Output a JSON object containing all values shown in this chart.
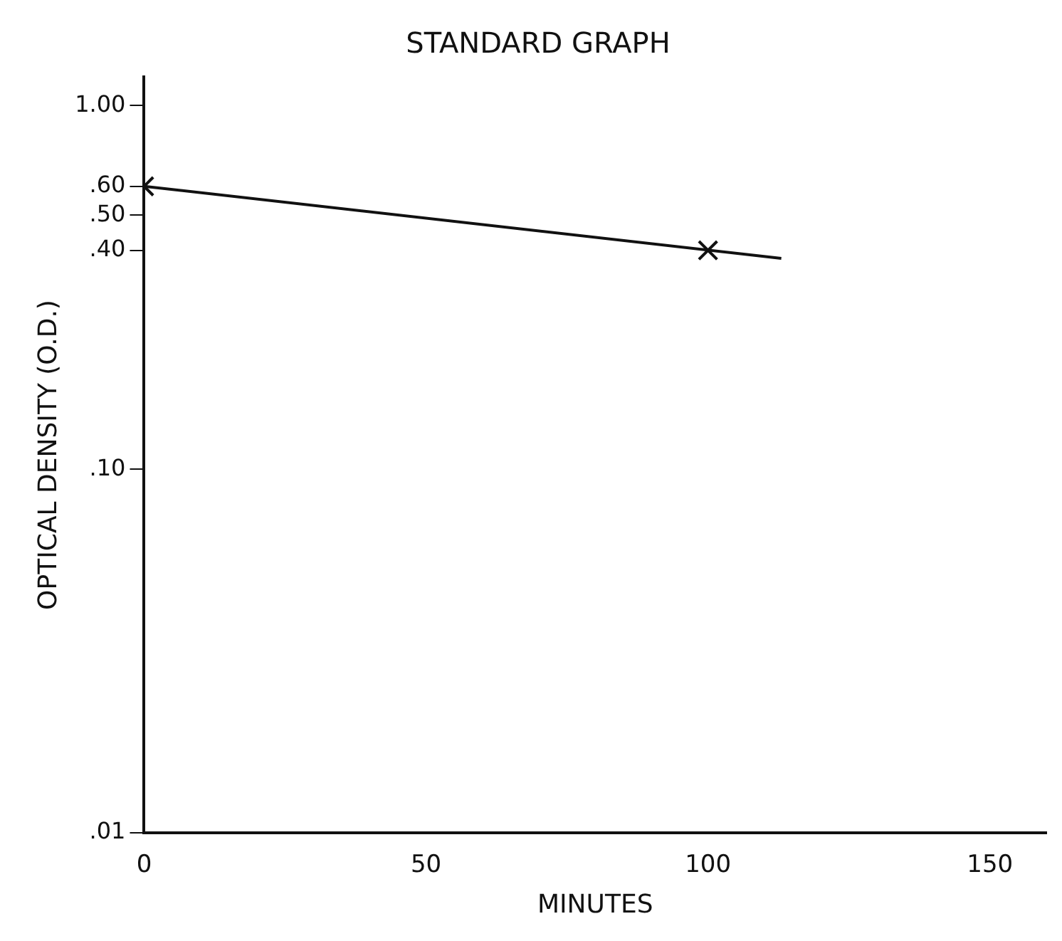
{
  "chart_data": {
    "type": "scatter",
    "title": "STANDARD GRAPH",
    "xlabel": "MINUTES",
    "ylabel": "OPTICAL DENSITY (O.D.)",
    "xlim": [
      0,
      160
    ],
    "xticks": [
      0,
      50,
      100,
      150
    ],
    "ylim": [
      0.01,
      1.2
    ],
    "yticks": [
      {
        "value": 0.01,
        "label": ".01"
      },
      {
        "value": 0.1,
        "label": ".10"
      },
      {
        "value": 0.4,
        "label": ".40"
      },
      {
        "value": 0.5,
        "label": ".50"
      },
      {
        "value": 0.6,
        "label": ".60"
      },
      {
        "value": 1,
        "label": "1.00"
      }
    ],
    "log": "y",
    "grid": false,
    "legend": false,
    "series": [
      {
        "type": "line",
        "color": "#111111",
        "x": [
          0,
          113
        ],
        "values": [
          0.6,
          0.38
        ],
        "marker": "none",
        "line_style": "solid"
      },
      {
        "color": "#111111",
        "x": [
          0,
          100
        ],
        "values": [
          0.6,
          0.4
        ],
        "marker": "cross"
      }
    ]
  }
}
